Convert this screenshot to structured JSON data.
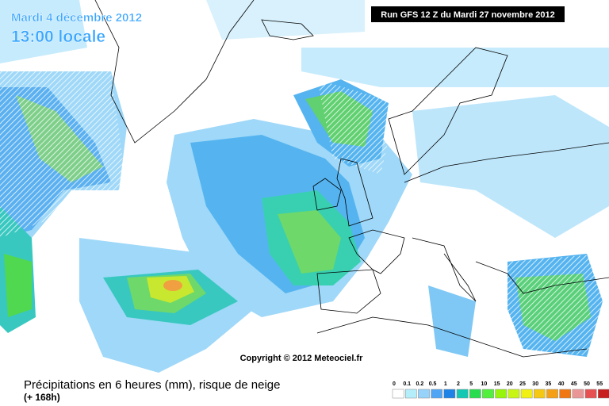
{
  "header": {
    "date": "Mardi 4 décembre 2012",
    "time": "13:00 locale",
    "run": "Run GFS 12 Z du Mardi 27 novembre 2012"
  },
  "copyright": "Copyright © 2012 Meteociel.fr",
  "footer": {
    "title": "Précipitations en 6 heures (mm), risque de neige",
    "lead": "(+ 168h)"
  },
  "legend": {
    "labels": [
      0,
      0.1,
      0.2,
      0.5,
      1,
      2,
      5,
      10,
      15,
      20,
      25,
      30,
      35,
      40,
      45,
      50,
      55
    ]
  }
}
